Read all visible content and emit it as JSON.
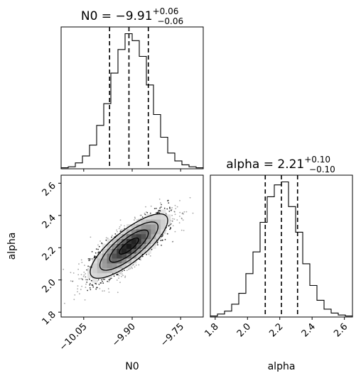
{
  "chart_data": {
    "type": "corner",
    "parameters": [
      "N0",
      "alpha"
    ],
    "xlabels": [
      "N0",
      "alpha"
    ],
    "ylabel": "alpha",
    "titles": [
      {
        "param": "N0",
        "median": "9.91",
        "sign": "−",
        "plus": "+0.06",
        "minus": "−0.06",
        "prefix": "N0 = "
      },
      {
        "param": "alpha",
        "median": "2.21",
        "sign": "",
        "plus": "+0.10",
        "minus": "−0.10",
        "prefix": "alpha = "
      }
    ],
    "n0_axis": {
      "lim": [
        -10.12,
        -9.68
      ],
      "ticks": [
        -10.05,
        -9.9,
        -9.75
      ],
      "tick_labels": [
        "−10.05",
        "−9.90",
        "−9.75"
      ]
    },
    "alpha_axis": {
      "lim": [
        1.77,
        2.65
      ],
      "ticks": [
        1.8,
        2.0,
        2.2,
        2.4,
        2.6
      ],
      "tick_labels": [
        "1.8",
        "2.0",
        "2.2",
        "2.4",
        "2.6"
      ]
    },
    "quantiles": {
      "N0": [
        -9.97,
        -9.91,
        -9.85
      ],
      "alpha": [
        2.11,
        2.21,
        2.31
      ]
    },
    "hist_N0": {
      "edges": [
        -10.12,
        -10.098,
        -10.076,
        -10.054,
        -10.032,
        -10.01,
        -9.988,
        -9.966,
        -9.944,
        -9.922,
        -9.9,
        -9.878,
        -9.856,
        -9.834,
        -9.812,
        -9.79,
        -9.768,
        -9.746,
        -9.724,
        -9.702,
        -9.68
      ],
      "counts": [
        1,
        2,
        6,
        13,
        24,
        44,
        66,
        97,
        121,
        137,
        130,
        114,
        85,
        55,
        32,
        16,
        8,
        4,
        2,
        1
      ]
    },
    "hist_alpha": {
      "edges": [
        1.77,
        1.814,
        1.858,
        1.902,
        1.946,
        1.99,
        2.034,
        2.078,
        2.122,
        2.166,
        2.21,
        2.254,
        2.298,
        2.342,
        2.386,
        2.43,
        2.474,
        2.518,
        2.562,
        2.606,
        2.65
      ],
      "counts": [
        1,
        3,
        6,
        13,
        24,
        44,
        66,
        96,
        122,
        134,
        137,
        112,
        86,
        54,
        32,
        17,
        8,
        4,
        2,
        1
      ]
    },
    "joint": {
      "mean": [
        -9.91,
        2.21
      ],
      "sd": [
        0.06,
        0.1
      ],
      "corr": 0.8,
      "levels_sigma": [
        0.5,
        1.0,
        1.5,
        2.0
      ]
    }
  }
}
